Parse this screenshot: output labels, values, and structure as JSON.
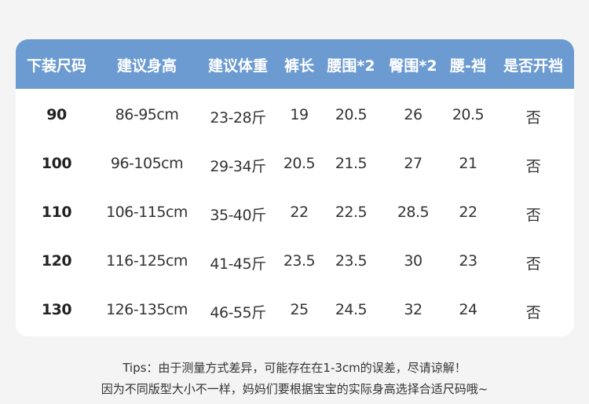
{
  "header": [
    "下装尺码",
    "建议身高",
    "建议体重",
    "裤长",
    "腰围*2",
    "臀围*2",
    "腰-裆",
    "是否开裆"
  ],
  "rows": [
    [
      "90",
      "86-95cm",
      "23-28斤",
      "19",
      "20.5",
      "26",
      "20.5",
      "否"
    ],
    [
      "100",
      "96-105cm",
      "29-34斤",
      "20.5",
      "21.5",
      "27",
      "21",
      "否"
    ],
    [
      "110",
      "106-115cm",
      "35-40斤",
      "22",
      "22.5",
      "28.5",
      "22",
      "否"
    ],
    [
      "120",
      "116-125cm",
      "41-45斤",
      "23.5",
      "23.5",
      "30",
      "23",
      "否"
    ],
    [
      "130",
      "126-135cm",
      "46-55斤",
      "25",
      "24.5",
      "32",
      "24",
      "否"
    ]
  ],
  "tips": [
    "Tips：由于测量方式差异，可能存在在1-3cm的误差，尽请谅解！",
    "因为不同版型大小不一样，妈妈们要根据宝宝的实际身高选择合适尺码哦~"
  ],
  "colors": {
    "header": "#6c9bd2",
    "background": "#f4f4f4"
  }
}
